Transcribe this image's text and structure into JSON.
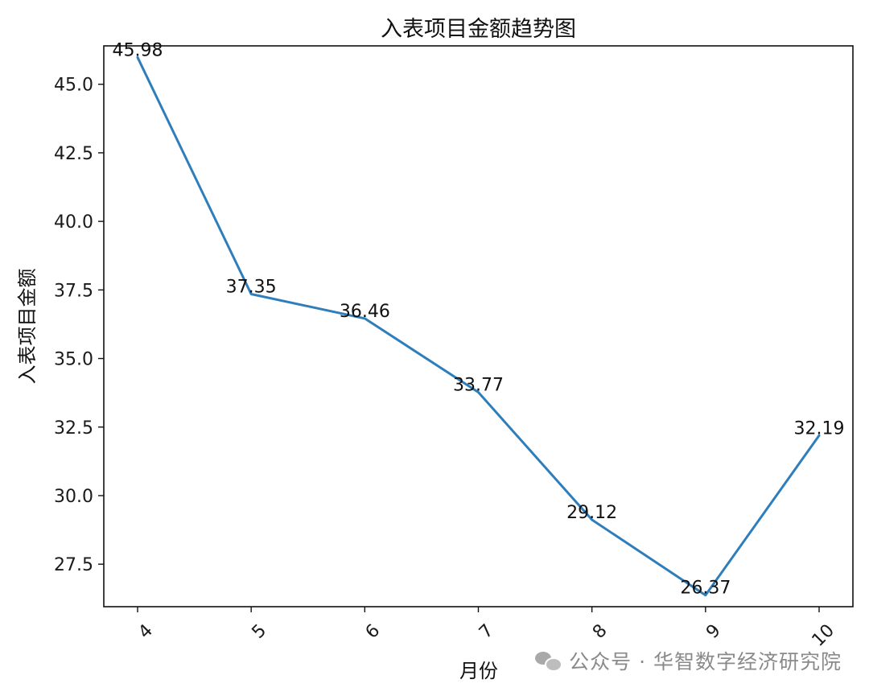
{
  "chart_data": {
    "type": "line",
    "title": "入表项目金额趋势图",
    "xlabel": "月份",
    "ylabel": "入表项目金额",
    "categories": [
      "4",
      "5",
      "6",
      "7",
      "8",
      "9",
      "10"
    ],
    "series": [
      {
        "values": [
          45.98,
          37.35,
          36.46,
          33.77,
          29.12,
          26.37,
          32.19
        ]
      }
    ],
    "data_labels": [
      "45.98",
      "37.35",
      "36.46",
      "33.77",
      "29.12",
      "26.37",
      "32.19"
    ],
    "ylim": [
      25.95,
      46.4
    ],
    "yticks": [
      27.5,
      30.0,
      32.5,
      35.0,
      37.5,
      40.0,
      42.5,
      45.0
    ],
    "ytick_labels": [
      "27.5",
      "30.0",
      "32.5",
      "35.0",
      "37.5",
      "40.0",
      "42.5",
      "45.0"
    ],
    "xtick_rotation_deg": 45,
    "grid": false,
    "legend": "none",
    "line_color": "#2e7ebc"
  },
  "watermark": {
    "text": "公众号 · 华智数字经济研究院",
    "icon": "wechat-icon"
  }
}
